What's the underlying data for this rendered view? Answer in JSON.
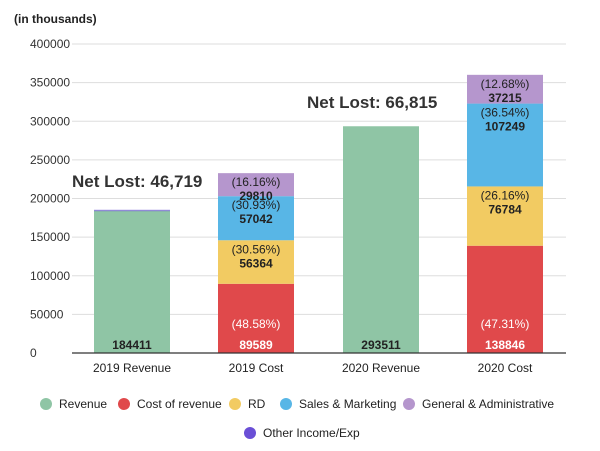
{
  "chart_data": {
    "type": "bar",
    "stacked": true,
    "unit_label": "(in thousands)",
    "ylim": [
      0,
      400000
    ],
    "y_ticks": [
      0,
      50000,
      100000,
      150000,
      200000,
      250000,
      300000,
      350000,
      400000
    ],
    "categories": [
      "2019 Revenue",
      "2019 Cost",
      "2020 Revenue",
      "2020 Cost"
    ],
    "series": [
      {
        "name": "Revenue",
        "color": "#8fc5a5",
        "values": [
          184411,
          0,
          293511,
          0
        ],
        "labels": [
          "184411",
          "",
          "293511",
          ""
        ],
        "pct": [
          "",
          "",
          "",
          ""
        ]
      },
      {
        "name": "Cost of revenue",
        "color": "#e0494b",
        "values": [
          0,
          89589,
          0,
          138846
        ],
        "labels": [
          "",
          "89589",
          "",
          "138846"
        ],
        "pct": [
          "",
          "(48.58%)",
          "",
          "(47.31%)"
        ]
      },
      {
        "name": "RD",
        "color": "#f2cb62",
        "values": [
          0,
          56364,
          0,
          76784
        ],
        "labels": [
          "",
          "56364",
          "",
          "76784"
        ],
        "pct": [
          "",
          "(30.56%)",
          "",
          "(26.16%)"
        ]
      },
      {
        "name": "Sales & Marketing",
        "color": "#58b6e6",
        "values": [
          0,
          57042,
          0,
          107249
        ],
        "labels": [
          "",
          "57042",
          "",
          "107249"
        ],
        "pct": [
          "",
          "(30.93%)",
          "",
          "(36.54%)"
        ]
      },
      {
        "name": "General & Administrative",
        "color": "#b596cd",
        "values": [
          0,
          29810,
          0,
          37215
        ],
        "labels": [
          "",
          "29810",
          "",
          "37215"
        ],
        "pct": [
          "",
          "(16.16%)",
          "",
          "(12.68%)"
        ]
      },
      {
        "name": "Other Income/Exp",
        "color": "#6a4fd6",
        "values": [
          0,
          0,
          0,
          0
        ],
        "labels": [
          "",
          "",
          "",
          ""
        ],
        "pct": [
          "",
          "",
          "",
          ""
        ]
      }
    ],
    "annotations": [
      {
        "text": "Net Lost: 46,719",
        "category": "2019 Revenue"
      },
      {
        "text": "Net Lost: 66,815",
        "category": "2020 Revenue"
      }
    ]
  }
}
